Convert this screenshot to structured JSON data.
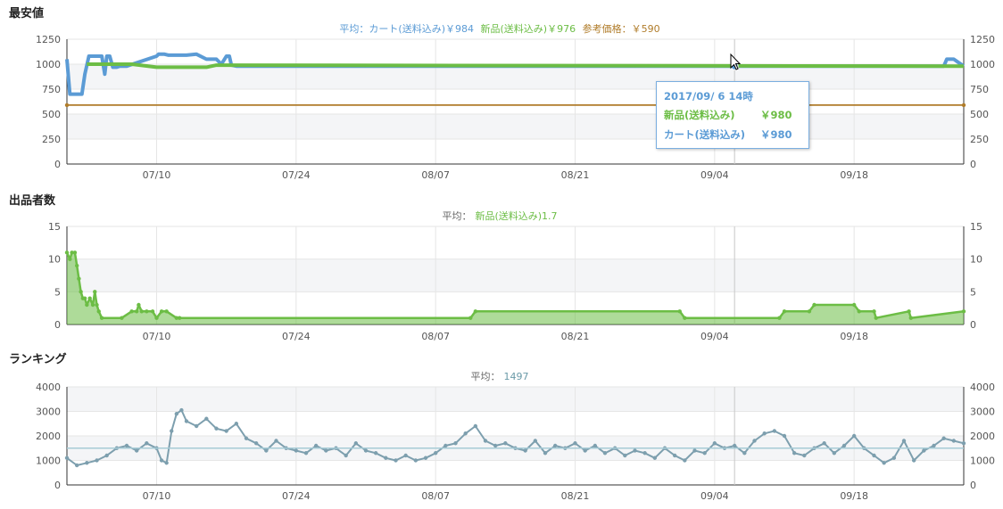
{
  "sections": [
    {
      "title": "最安値"
    },
    {
      "title": "出品者数"
    },
    {
      "title": "ランキング"
    }
  ],
  "legend": {
    "price": {
      "cart_label": "平均：カート(送料込み)￥984",
      "new_label": "新品(送料込み)￥976",
      "ref_label": "参考価格：￥590"
    },
    "sellers": {
      "prefix": "平均：",
      "value": "新品(送料込み)1.7"
    },
    "ranking": {
      "prefix": "平均：",
      "value": "1497"
    }
  },
  "tooltip": {
    "date": "2017/09/ 6 14時",
    "rows": [
      {
        "label": "新品(送料込み)",
        "value": "￥980"
      },
      {
        "label": "カート(送料込み)",
        "value": "￥980"
      }
    ]
  },
  "colors": {
    "cart": "#5b9bd5",
    "new": "#6cbd45",
    "ref": "#b07c2a",
    "rank": "#7d9fae",
    "rank_avg": "#a6cbd6",
    "grid": "#e6e6e6",
    "band": "#f4f5f7"
  },
  "chart_data": [
    {
      "type": "line",
      "title": "最安値",
      "x_ticks": [
        "07/10",
        "07/24",
        "08/07",
        "08/21",
        "09/04",
        "09/18"
      ],
      "x_tick_days": [
        9,
        23,
        37,
        51,
        65,
        79
      ],
      "x_range_days": [
        0,
        90
      ],
      "y_ticks": [
        0,
        250,
        500,
        750,
        1000,
        1250
      ],
      "ylim": [
        0,
        1250
      ],
      "dual_y_axis": true,
      "grid": true,
      "series": [
        {
          "name": "カート(送料込み)",
          "color": "#5b9bd5",
          "x": [
            0,
            0.3,
            0.5,
            1.5,
            1.8,
            2.2,
            2.7,
            3.5,
            3.8,
            4.0,
            4.3,
            4.6,
            5.0,
            5.3,
            6.0,
            9.0,
            9.2,
            9.4,
            9.8,
            10.2,
            10.5,
            11.0,
            12.0,
            13.0,
            14.0,
            15.0,
            15.5,
            16.0,
            16.3,
            16.5,
            17.0,
            88.0,
            88.3,
            89.0,
            90.0
          ],
          "y": [
            1050,
            700,
            700,
            700,
            900,
            1080,
            1080,
            1080,
            900,
            1080,
            1080,
            970,
            970,
            980,
            980,
            1080,
            1100,
            1100,
            1100,
            1090,
            1090,
            1090,
            1090,
            1100,
            1050,
            1050,
            1000,
            1080,
            1080,
            990,
            980,
            980,
            1050,
            1050,
            980
          ]
        },
        {
          "name": "新品(送料込み)",
          "color": "#6cbd45",
          "x": [
            2.0,
            6.0,
            6.5,
            9.0,
            10.5,
            14.0,
            15.0,
            16.0,
            90.0
          ],
          "y": [
            1000,
            1000,
            1000,
            970,
            970,
            970,
            990,
            990,
            980
          ]
        },
        {
          "name": "参考価格",
          "color": "#b07c2a",
          "x": [
            0,
            90
          ],
          "y": [
            590,
            590
          ]
        }
      ]
    },
    {
      "type": "area",
      "title": "出品者数",
      "x_ticks": [
        "07/10",
        "07/24",
        "08/07",
        "08/21",
        "09/04",
        "09/18"
      ],
      "x_tick_days": [
        9,
        23,
        37,
        51,
        65,
        79
      ],
      "x_range_days": [
        0,
        90
      ],
      "y_ticks": [
        0,
        5,
        10,
        15
      ],
      "ylim": [
        0,
        15
      ],
      "dual_y_axis": true,
      "grid": true,
      "series": [
        {
          "name": "新品(送料込み)",
          "color": "#6cbd45",
          "x": [
            0,
            0.3,
            0.5,
            0.8,
            1.0,
            1.2,
            1.4,
            1.6,
            1.8,
            2.0,
            2.3,
            2.6,
            2.8,
            3.0,
            3.2,
            3.5,
            5.5,
            6.5,
            7.0,
            7.2,
            7.5,
            8.0,
            8.6,
            9.0,
            9.5,
            10.0,
            11.0,
            11.3,
            40.5,
            41.0,
            61.5,
            62.0,
            71.5,
            72.0,
            74.5,
            75.0,
            79.0,
            79.5,
            81.0,
            81.2,
            84.5,
            84.7,
            90.0
          ],
          "y": [
            11,
            10,
            11,
            11,
            9,
            7,
            5,
            4,
            4,
            3,
            4,
            3,
            5,
            3,
            2,
            1,
            1,
            2,
            2,
            3,
            2,
            2,
            2,
            1,
            2,
            2,
            1,
            1,
            1,
            2,
            2,
            1,
            1,
            2,
            2,
            3,
            3,
            2,
            2,
            1,
            2,
            1,
            2
          ]
        }
      ]
    },
    {
      "type": "line",
      "title": "ランキング",
      "x_ticks": [
        "07/10",
        "07/24",
        "08/07",
        "08/21",
        "09/04",
        "09/18"
      ],
      "x_tick_days": [
        9,
        23,
        37,
        51,
        65,
        79
      ],
      "x_range_days": [
        0,
        90
      ],
      "y_ticks": [
        0,
        1000,
        2000,
        3000,
        4000
      ],
      "ylim": [
        0,
        4000
      ],
      "dual_y_axis": true,
      "grid": true,
      "series": [
        {
          "name": "ランキング",
          "color": "#7d9fae",
          "x": [
            0,
            1,
            2,
            3,
            4,
            5,
            6,
            7,
            8,
            9,
            9.5,
            10,
            10.5,
            11,
            11.5,
            12,
            13,
            14,
            15,
            16,
            17,
            18,
            19,
            20,
            21,
            22,
            23,
            24,
            25,
            26,
            27,
            28,
            29,
            30,
            31,
            32,
            33,
            34,
            35,
            36,
            37,
            38,
            39,
            40,
            41,
            42,
            43,
            44,
            45,
            46,
            47,
            48,
            49,
            50,
            51,
            52,
            53,
            54,
            55,
            56,
            57,
            58,
            59,
            60,
            61,
            62,
            63,
            64,
            65,
            66,
            67,
            68,
            69,
            70,
            71,
            72,
            73,
            74,
            75,
            76,
            77,
            78,
            79,
            80,
            81,
            82,
            83,
            84,
            85,
            86,
            87,
            88,
            89,
            90
          ],
          "y": [
            1100,
            800,
            900,
            1000,
            1200,
            1500,
            1600,
            1400,
            1700,
            1500,
            1000,
            900,
            2200,
            2900,
            3050,
            2600,
            2400,
            2700,
            2300,
            2200,
            2500,
            1900,
            1700,
            1400,
            1800,
            1500,
            1400,
            1300,
            1600,
            1400,
            1500,
            1200,
            1700,
            1400,
            1300,
            1100,
            1000,
            1200,
            1000,
            1100,
            1300,
            1600,
            1700,
            2100,
            2400,
            1800,
            1600,
            1700,
            1500,
            1400,
            1800,
            1300,
            1600,
            1500,
            1700,
            1400,
            1600,
            1300,
            1500,
            1200,
            1400,
            1300,
            1100,
            1500,
            1200,
            1000,
            1400,
            1300,
            1700,
            1500,
            1600,
            1300,
            1800,
            2100,
            2200,
            2000,
            1300,
            1200,
            1500,
            1700,
            1300,
            1600,
            2000,
            1500,
            1200,
            900,
            1100,
            1800,
            1000,
            1400,
            1600,
            1900,
            1800,
            1700
          ]
        },
        {
          "name": "平均",
          "color": "#a6cbd6",
          "x": [
            0,
            90
          ],
          "y": [
            1497,
            1497
          ]
        }
      ]
    }
  ]
}
